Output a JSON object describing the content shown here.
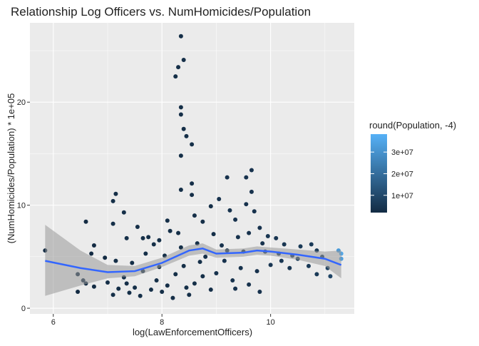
{
  "chart_data": {
    "type": "scatter",
    "title": "Relationship Log Officers vs. NumHomicides/Population",
    "x_label": "log(LawEnforcementOfficers)",
    "y_label": "(NumHomicides/Population) * 1e+05",
    "legend_title": "round(Population, -4)",
    "xlim": [
      5.57,
      11.54
    ],
    "ylim": [
      -0.55,
      27.7
    ],
    "xticks": [
      6,
      8,
      10
    ],
    "yticks": [
      0,
      10,
      20
    ],
    "grid": true,
    "color_low": "#132B43",
    "color_high": "#56B1F7",
    "color_lim": [
      2000000,
      38300000
    ],
    "color_ticks": [
      {
        "value": 10000000,
        "label": "1e+07"
      },
      {
        "value": 20000000,
        "label": "2e+07"
      },
      {
        "value": 30000000,
        "label": "3e+07"
      }
    ],
    "x": [
      8.35,
      8.25,
      8.3,
      8.4,
      8.35,
      8.35,
      8.4,
      8.45,
      8.55,
      8.35,
      8.35,
      9.65,
      9.55,
      9.2,
      9.65,
      7.15,
      7.1,
      8.55,
      8.55,
      6.6,
      6.75,
      5.85,
      6.45,
      6.55,
      6.6,
      6.45,
      6.75,
      6.7,
      6.95,
      7.1,
      7.3,
      7.35,
      7.55,
      7.65,
      7.75,
      7.85,
      7.95,
      8.1,
      8.15,
      8.3,
      8.6,
      8.75,
      8.9,
      9.05,
      9.25,
      9.35,
      9.55,
      9.7,
      9.8,
      9.95,
      10.1,
      10.25,
      10.55,
      10.75,
      10.85,
      10.95,
      11.05,
      11.3,
      11.3,
      11.25,
      11.1,
      10.85,
      10.7,
      10.5,
      10.35,
      10.15,
      10.0,
      9.9,
      9.75,
      9.6,
      9.45,
      9.3,
      9.15,
      9.0,
      8.9,
      8.75,
      8.6,
      8.5,
      8.45,
      8.4,
      8.25,
      8.1,
      8.0,
      7.9,
      7.8,
      7.65,
      7.5,
      7.4,
      7.3,
      7.2,
      7.1,
      7.0,
      7.15,
      7.45,
      7.7,
      8.05,
      8.35,
      8.65,
      8.8,
      9.1,
      9.4,
      9.6,
      9.85,
      10.4,
      9.2,
      8.95,
      8.2,
      7.6,
      9.8,
      9.5,
      10.2,
      8.7,
      7.95,
      7.35,
      9.35
    ],
    "values": [
      26.4,
      22.5,
      23.4,
      24.1,
      19.5,
      18.8,
      17.4,
      16.7,
      15.9,
      14.8,
      11.5,
      13.4,
      12.7,
      12.7,
      11.3,
      11.1,
      10.4,
      12.1,
      11.0,
      8.4,
      6.1,
      5.6,
      3.3,
      2.7,
      2.4,
      1.6,
      2.1,
      5.3,
      4.9,
      8.2,
      9.3,
      6.8,
      7.9,
      6.8,
      6.9,
      6.2,
      6.6,
      8.5,
      7.5,
      7.3,
      9.0,
      8.4,
      9.9,
      10.6,
      9.5,
      8.6,
      10.1,
      9.4,
      7.8,
      7.0,
      6.8,
      6.2,
      6.0,
      6.2,
      5.6,
      5.0,
      3.9,
      5.3,
      4.8,
      5.6,
      3.1,
      3.3,
      4.1,
      4.8,
      3.9,
      5.3,
      4.2,
      5.5,
      3.6,
      2.3,
      3.9,
      2.7,
      4.6,
      3.4,
      1.8,
      3.1,
      2.4,
      1.3,
      2.0,
      4.1,
      3.3,
      2.2,
      1.6,
      2.7,
      1.8,
      3.6,
      2.0,
      1.5,
      3.0,
      1.9,
      1.3,
      2.5,
      4.6,
      4.4,
      5.3,
      5.1,
      5.9,
      6.3,
      5.0,
      6.1,
      6.9,
      7.3,
      6.3,
      5.1,
      5.6,
      7.2,
      1.0,
      1.2,
      1.6,
      5.5,
      4.6,
      4.5,
      4.0,
      2.4,
      1.9
    ],
    "population": [
      3000000,
      3000000,
      3000000,
      3000000,
      3000000,
      3000000,
      3000000,
      3000000,
      3000000,
      3000000,
      3000000,
      4000000,
      4000000,
      4000000,
      4000000,
      3000000,
      3000000,
      3000000,
      3000000,
      2000000,
      2000000,
      2000000,
      2000000,
      2000000,
      2000000,
      2000000,
      2000000,
      2000000,
      2000000,
      3000000,
      3000000,
      3000000,
      3000000,
      3000000,
      3000000,
      3000000,
      3000000,
      3000000,
      3000000,
      3000000,
      3000000,
      3000000,
      3000000,
      4000000,
      4000000,
      4000000,
      4000000,
      4000000,
      4000000,
      5000000,
      5000000,
      5000000,
      6000000,
      6000000,
      6000000,
      6000000,
      8000000,
      35000000,
      33000000,
      32000000,
      9000000,
      6000000,
      6000000,
      6000000,
      5000000,
      5000000,
      5000000,
      5000000,
      4000000,
      4000000,
      4000000,
      4000000,
      4000000,
      4000000,
      3000000,
      3000000,
      3000000,
      3000000,
      3000000,
      3000000,
      3000000,
      3000000,
      3000000,
      3000000,
      3000000,
      3000000,
      3000000,
      3000000,
      3000000,
      3000000,
      3000000,
      3000000,
      3000000,
      3000000,
      3000000,
      3000000,
      3000000,
      3000000,
      3000000,
      4000000,
      4000000,
      4000000,
      4000000,
      5000000,
      4000000,
      3000000,
      3000000,
      3000000,
      4000000,
      4000000,
      5000000,
      3000000,
      3000000,
      3000000,
      4000000
    ],
    "smooth": {
      "color": "#3366FF",
      "band_color": "#999999",
      "x": [
        5.85,
        6.5,
        7.0,
        7.5,
        8.0,
        8.5,
        8.75,
        9.0,
        9.5,
        9.75,
        10.0,
        10.5,
        11.0,
        11.3
      ],
      "values": [
        4.6,
        3.9,
        3.5,
        3.6,
        4.4,
        5.6,
        5.8,
        5.3,
        5.4,
        5.6,
        5.5,
        5.2,
        4.8,
        4.2
      ],
      "lower": [
        1.2,
        2.2,
        2.9,
        3.1,
        4.0,
        5.1,
        5.3,
        4.9,
        5.0,
        5.2,
        5.1,
        4.7,
        4.1,
        2.9
      ],
      "upper": [
        8.1,
        5.6,
        4.2,
        4.1,
        4.9,
        6.1,
        6.3,
        5.7,
        5.8,
        6.0,
        5.9,
        5.7,
        5.5,
        5.6
      ]
    }
  }
}
